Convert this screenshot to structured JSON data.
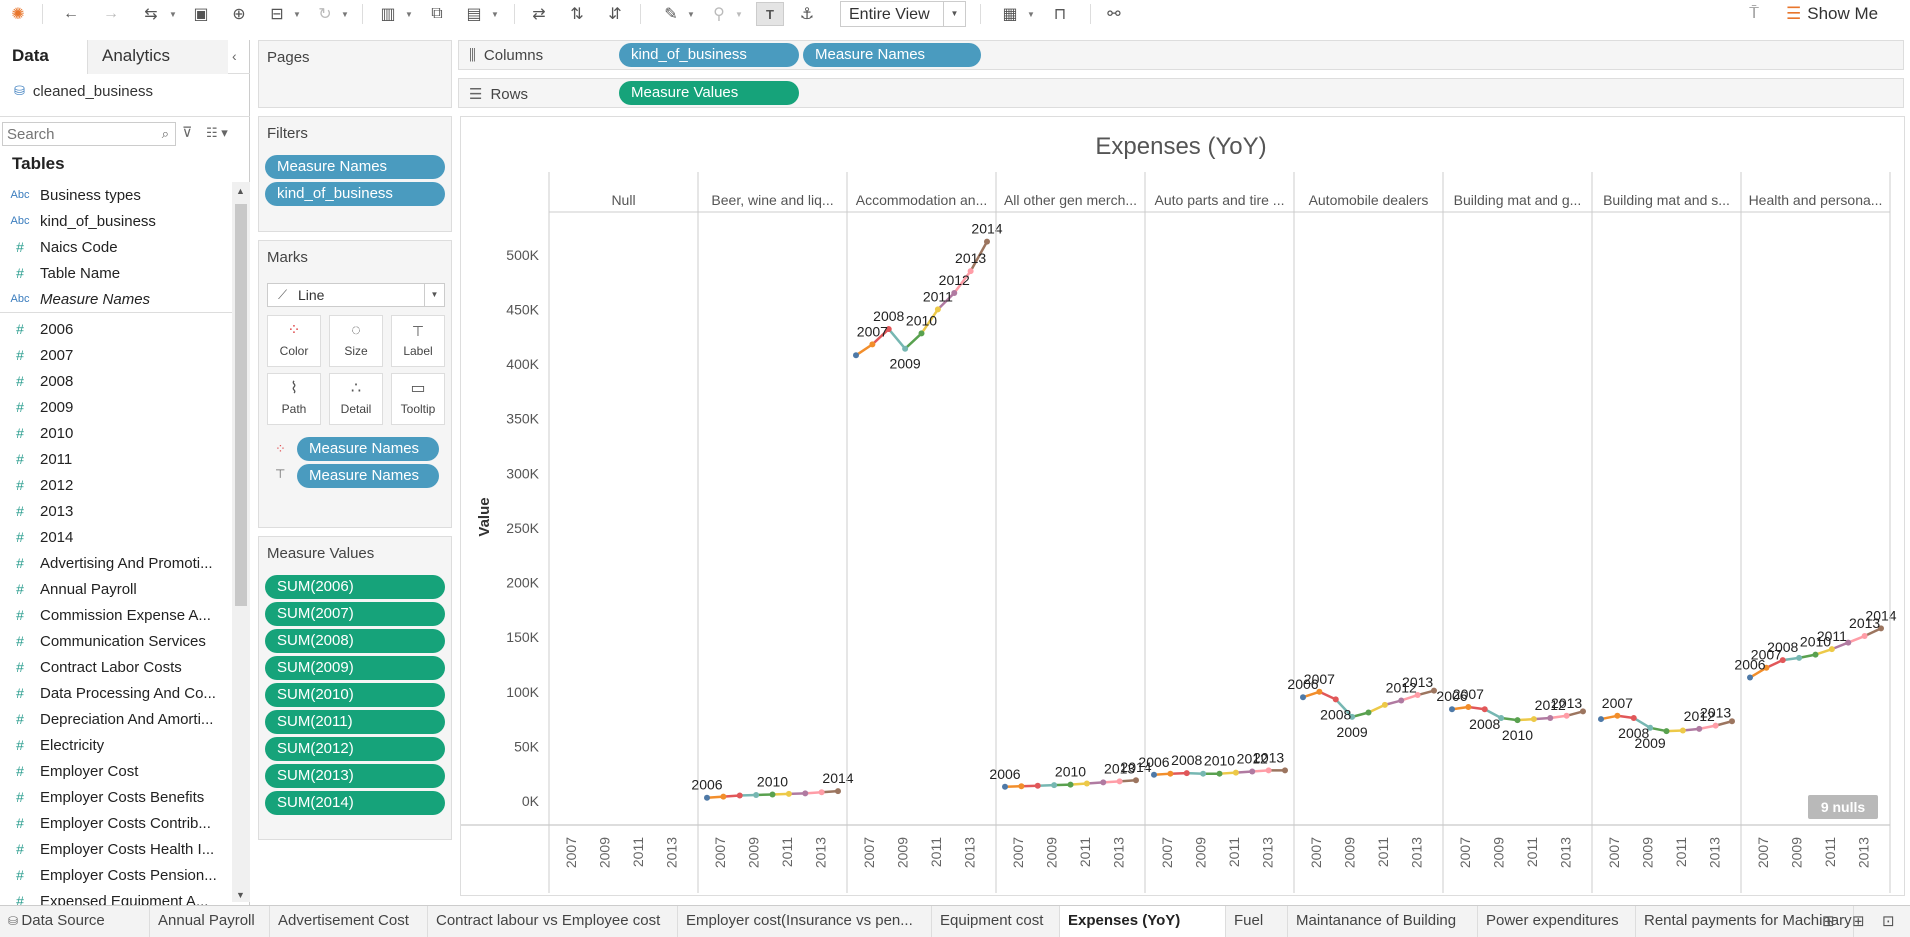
{
  "toolbar": {
    "view_mode": "Entire View",
    "show_me": "Show Me"
  },
  "datapane": {
    "tab_data": "Data",
    "tab_analytics": "Analytics",
    "datasource": "cleaned_business",
    "search_placeholder": "Search",
    "tables_heading": "Tables",
    "fields": [
      {
        "icon": "Abc",
        "name": "Business types"
      },
      {
        "icon": "Abc",
        "name": "kind_of_business"
      },
      {
        "icon": "#",
        "name": "Naics Code"
      },
      {
        "icon": "#",
        "name": "Table Name"
      },
      {
        "icon": "Abc",
        "name": "Measure Names"
      },
      {
        "icon": "#",
        "name": "2006"
      },
      {
        "icon": "#",
        "name": "2007"
      },
      {
        "icon": "#",
        "name": "2008"
      },
      {
        "icon": "#",
        "name": "2009"
      },
      {
        "icon": "#",
        "name": "2010"
      },
      {
        "icon": "#",
        "name": "2011"
      },
      {
        "icon": "#",
        "name": "2012"
      },
      {
        "icon": "#",
        "name": "2013"
      },
      {
        "icon": "#",
        "name": "2014"
      },
      {
        "icon": "#",
        "name": "Advertising And Promoti..."
      },
      {
        "icon": "#",
        "name": "Annual Payroll"
      },
      {
        "icon": "#",
        "name": "Commission Expense A..."
      },
      {
        "icon": "#",
        "name": "Communication Services"
      },
      {
        "icon": "#",
        "name": "Contract Labor Costs"
      },
      {
        "icon": "#",
        "name": "Data Processing And Co..."
      },
      {
        "icon": "#",
        "name": "Depreciation And Amorti..."
      },
      {
        "icon": "#",
        "name": "Electricity"
      },
      {
        "icon": "#",
        "name": "Employer Cost"
      },
      {
        "icon": "#",
        "name": "Employer Costs Benefits"
      },
      {
        "icon": "#",
        "name": "Employer Costs Contrib..."
      },
      {
        "icon": "#",
        "name": "Employer Costs Health I..."
      },
      {
        "icon": "#",
        "name": "Employer Costs Pension..."
      },
      {
        "icon": "#",
        "name": "Expensed Equipment A..."
      }
    ]
  },
  "cards": {
    "pages": "Pages",
    "filters": "Filters",
    "filter_pills": [
      "Measure Names",
      "kind_of_business"
    ],
    "marks": "Marks",
    "mark_type": "Line",
    "mark_buttons": [
      {
        "icon": "color-icon",
        "label": "Color"
      },
      {
        "icon": "size-icon",
        "label": "Size"
      },
      {
        "icon": "label-icon",
        "label": "Label"
      },
      {
        "icon": "path-icon",
        "label": "Path"
      },
      {
        "icon": "detail-icon",
        "label": "Detail"
      },
      {
        "icon": "tooltip-icon",
        "label": "Tooltip"
      }
    ],
    "mark_pills": [
      "Measure Names",
      "Measure Names"
    ],
    "measure_values": "Measure Values",
    "measure_pills": [
      "SUM(2006)",
      "SUM(2007)",
      "SUM(2008)",
      "SUM(2009)",
      "SUM(2010)",
      "SUM(2011)",
      "SUM(2012)",
      "SUM(2013)",
      "SUM(2014)"
    ]
  },
  "shelves": {
    "columns_label": "Columns",
    "columns_pills": [
      "kind_of_business",
      "Measure Names"
    ],
    "rows_label": "Rows",
    "rows_pills": [
      "Measure Values"
    ]
  },
  "chart_data": {
    "type": "line",
    "title": "Expenses (YoY)",
    "ylabel": "Value",
    "ylim": [
      0,
      530000
    ],
    "yticks": [
      0,
      50000,
      100000,
      150000,
      200000,
      250000,
      300000,
      350000,
      400000,
      450000,
      500000
    ],
    "ytick_labels": [
      "0K",
      "50K",
      "100K",
      "150K",
      "200K",
      "250K",
      "300K",
      "350K",
      "400K",
      "450K",
      "500K"
    ],
    "x": [
      2006,
      2007,
      2008,
      2009,
      2010,
      2011,
      2012,
      2013,
      2014
    ],
    "x_tick_labels": [
      "2007",
      "2009",
      "2011",
      "2013"
    ],
    "null_badge": "9 nulls",
    "year_colors": [
      "#4e79a7",
      "#f28e2b",
      "#e15759",
      "#76b7b2",
      "#59a14f",
      "#edc948",
      "#b07aa1",
      "#ff9da7",
      "#9c755f"
    ],
    "panes": [
      {
        "name": "Null",
        "values": []
      },
      {
        "name": "Beer, wine and liq...",
        "values": [
          3000,
          4000,
          5000,
          5500,
          6000,
          6500,
          7000,
          8000,
          9000
        ],
        "labels": [
          "2006",
          "",
          "",
          "",
          "2010",
          "",
          "",
          "",
          "2014"
        ]
      },
      {
        "name": "Accommodation an...",
        "values": [
          408000,
          418000,
          432000,
          414000,
          428000,
          450000,
          465000,
          485000,
          512000
        ],
        "labels": [
          "",
          "2007",
          "2008",
          "2009",
          "2010",
          "2011",
          "2012",
          "2013",
          "2014"
        ]
      },
      {
        "name": "All other gen merch...",
        "values": [
          13000,
          13500,
          14000,
          14500,
          15000,
          16000,
          17000,
          18000,
          19000
        ],
        "labels": [
          "2006",
          "",
          "",
          "",
          "2010",
          "",
          "",
          "2013",
          "2014"
        ]
      },
      {
        "name": "Auto parts and tire ...",
        "values": [
          24000,
          25000,
          25500,
          25000,
          25000,
          26000,
          27000,
          28000,
          28000
        ],
        "labels": [
          "2006",
          "",
          "2008",
          "",
          "2010",
          "",
          "2012",
          "2013",
          ""
        ]
      },
      {
        "name": "Automobile dealers",
        "values": [
          95000,
          100000,
          93000,
          77000,
          81000,
          88000,
          92000,
          97000,
          101000
        ],
        "labels": [
          "2006",
          "2007",
          "2008",
          "2009",
          "",
          "",
          "2012",
          "2013",
          ""
        ]
      },
      {
        "name": "Building mat and g...",
        "values": [
          84000,
          86000,
          84000,
          76000,
          74000,
          75000,
          76000,
          78000,
          82000
        ],
        "labels": [
          "2006",
          "2007",
          "2008",
          "",
          "2010",
          "",
          "2012",
          "2013",
          ""
        ]
      },
      {
        "name": "Building mat and s...",
        "values": [
          75000,
          78000,
          76000,
          67000,
          64000,
          64500,
          66000,
          69000,
          73000
        ],
        "labels": [
          "",
          "2007",
          "2008",
          "2009",
          "",
          "",
          "2012",
          "2013",
          ""
        ]
      },
      {
        "name": "Health and persona...",
        "values": [
          113000,
          122000,
          129000,
          131000,
          134000,
          139000,
          145000,
          151000,
          158000
        ],
        "labels": [
          "2006",
          "2007",
          "2008",
          "",
          "2010",
          "2011",
          "",
          "2013",
          "2014"
        ]
      }
    ]
  },
  "sheets": {
    "tabs": [
      "Data Source",
      "Annual Payroll",
      "Advertisement Cost",
      "Contract labour vs Employee cost",
      "Employer cost(Insurance vs pen...",
      "Equipment cost",
      "Expenses (YoY)",
      "Fuel",
      "Maintanance of Building",
      "Power expenditures",
      "Rental payments for Machinary"
    ],
    "active_index": 6
  }
}
